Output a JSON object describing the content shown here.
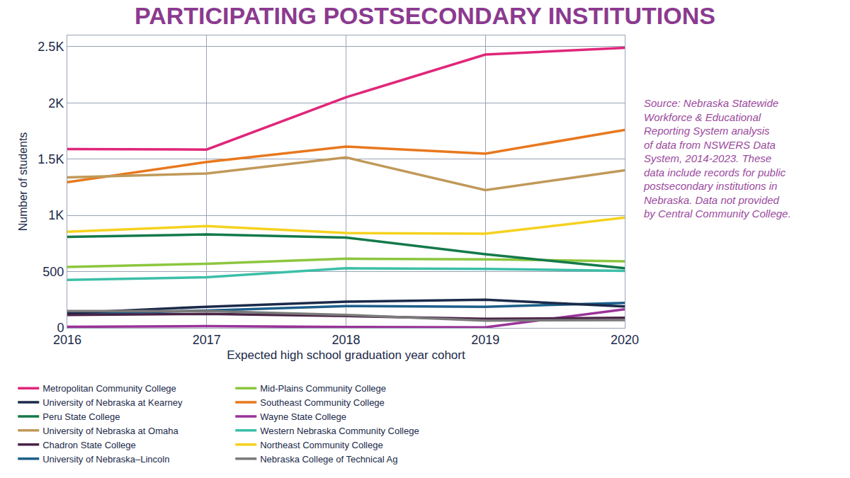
{
  "chart_data": {
    "type": "line",
    "title": "PARTICIPATING POSTSECONDARY INSTITUTIONS",
    "x_label": "Expected high school graduation year cohort",
    "y_label": "Number of students",
    "annotation": [
      "Source: Nebraska Statewide",
      "Workforce & Educational",
      "Reporting System analysis",
      "of data from NSWERS Data",
      "System, 2014-2023. These",
      "data include records for public",
      "postsecondary institutions in",
      "Nebraska. Data not provided",
      "by Central Community College."
    ],
    "x": [
      2016,
      2017,
      2018,
      2019,
      2020
    ],
    "xlim": [
      2016,
      2020
    ],
    "xticks": [
      2016,
      2017,
      2018,
      2019,
      2020
    ],
    "ylim": [
      0,
      2600
    ],
    "yticks": [
      0,
      500,
      {
        "value": 1000,
        "label": "1K"
      },
      {
        "value": 1500,
        "label": "1.5K"
      },
      {
        "value": 2000,
        "label": "2K"
      },
      {
        "value": 2500,
        "label": "2.5K"
      }
    ],
    "grid": true,
    "legend": "bottom",
    "series": [
      {
        "name": "Metropolitan Community College",
        "color": "#e0267a",
        "values": [
          1590,
          1585,
          2050,
          2430,
          2490
        ]
      },
      {
        "name": "Southeast Community College",
        "color": "#e8781e",
        "values": [
          1295,
          1475,
          1612,
          1549,
          1760
        ]
      },
      {
        "name": "University of Nebraska at Omaha",
        "color": "#c0995a",
        "values": [
          1338,
          1372,
          1515,
          1224,
          1401
        ]
      },
      {
        "name": "Northeast Community College",
        "color": "#f5d21f",
        "values": [
          854,
          905,
          843,
          837,
          980
        ]
      },
      {
        "name": "Mid-Plains Community College",
        "color": "#8cc63f",
        "values": [
          541,
          570,
          615,
          609,
          592
        ]
      },
      {
        "name": "Peru State College",
        "color": "#137a4a",
        "values": [
          809,
          831,
          803,
          655,
          530
        ]
      },
      {
        "name": "Western Nebraska Community College",
        "color": "#3cbfa8",
        "values": [
          427,
          450,
          530,
          524,
          507
        ]
      },
      {
        "name": "University of Nebraska–Lincoln",
        "color": "#1d5f8a",
        "values": [
          125,
          154,
          194,
          188,
          222
        ]
      },
      {
        "name": "University of Nebraska at Kearney",
        "color": "#1b2a4a",
        "values": [
          131,
          188,
          233,
          250,
          190
        ]
      },
      {
        "name": "Wayne State College",
        "color": "#993399",
        "values": [
          10,
          15,
          8,
          5,
          165
        ]
      },
      {
        "name": "Chadron State College",
        "color": "#4a2346",
        "values": [
          115,
          125,
          105,
          80,
          90
        ]
      },
      {
        "name": "Nebraska College of Technical Ag",
        "color": "#7a7a7a",
        "values": [
          150,
          150,
          115,
          65,
          70
        ]
      }
    ]
  }
}
